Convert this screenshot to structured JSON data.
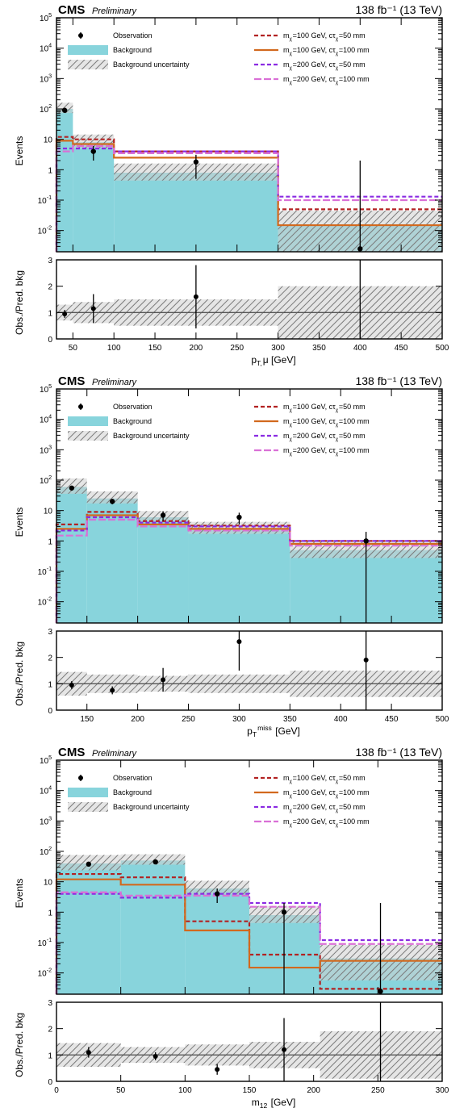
{
  "common": {
    "cms_label": "CMS",
    "preliminary_label": "Preliminary",
    "lumi_label": "138 fb⁻¹ (13 TeV)",
    "y_label_top": "Events",
    "y_label_ratio": "Obs./Pred. bkg",
    "legend": {
      "observation": "Observation",
      "background": "Background",
      "uncertainty": "Background uncertainty",
      "signal_1": "m_χ=100 GeV, cτ_χ=50 mm",
      "signal_2": "m_χ=100 GeV, cτ_χ=100 mm",
      "signal_3": "m_χ=200 GeV, cτ_χ=50 mm",
      "signal_4": "m_χ=200 GeV, cτ_χ=100 mm"
    },
    "colors": {
      "background": "#88d4dc",
      "uncertainty_hatch": "#8c8c8c",
      "signal_1": "#b22222",
      "signal_2": "#d2691e",
      "signal_3": "#8a2be2",
      "signal_4": "#da70d6",
      "data": "#000000"
    }
  },
  "chart_data": [
    {
      "type": "bar",
      "xlabel": "p_T,μ [GeV]",
      "xlim": [
        30,
        500
      ],
      "ylim": [
        0.002,
        100000
      ],
      "yscale": "log",
      "ratio_ylim": [
        0,
        3
      ],
      "x_ticks": [
        50,
        100,
        150,
        200,
        250,
        300,
        350,
        400,
        450,
        500
      ],
      "bins": [
        30,
        50,
        100,
        300,
        500
      ],
      "background": [
        100,
        8,
        0.8,
        0.015
      ],
      "background_unc": [
        0.3,
        0.4,
        0.5,
        1.0
      ],
      "observation": [
        {
          "x": 40,
          "y": 90,
          "err": 15
        },
        {
          "x": 75,
          "y": 4,
          "err": 2
        },
        {
          "x": 200,
          "y": 1.8,
          "err": 1.3
        },
        {
          "x": 400,
          "y": 0.0025,
          "err_up": 2
        }
      ],
      "ratio": [
        {
          "x": 40,
          "y": 0.95,
          "err": 0.15
        },
        {
          "x": 75,
          "y": 1.15,
          "err": 0.55
        },
        {
          "x": 200,
          "y": 1.6,
          "err": 1.2
        },
        {
          "x": 400,
          "y": 0,
          "err_up": 3
        }
      ],
      "signals": [
        {
          "values": [
            12,
            10,
            4,
            0.05
          ]
        },
        {
          "values": [
            9,
            7,
            2.5,
            0.015
          ]
        },
        {
          "values": [
            5,
            5,
            4,
            0.13
          ]
        },
        {
          "values": [
            4,
            6,
            3.5,
            0.1
          ]
        }
      ]
    },
    {
      "type": "bar",
      "xlabel": "p_T^miss [GeV]",
      "xlim": [
        120,
        500
      ],
      "ylim": [
        0.002,
        100000
      ],
      "yscale": "log",
      "ratio_ylim": [
        0,
        3
      ],
      "x_ticks": [
        150,
        200,
        250,
        300,
        350,
        400,
        450,
        500
      ],
      "bins": [
        120,
        150,
        200,
        250,
        350,
        500
      ],
      "background": [
        60,
        25,
        6,
        2.5,
        0.5
      ],
      "background_unc": [
        0.45,
        0.35,
        0.3,
        0.35,
        0.5
      ],
      "observation": [
        {
          "x": 135,
          "y": 55,
          "err": 8
        },
        {
          "x": 175,
          "y": 20,
          "err": 4
        },
        {
          "x": 225,
          "y": 7,
          "err": 2.5
        },
        {
          "x": 300,
          "y": 6,
          "err": 2.5
        },
        {
          "x": 425,
          "y": 1,
          "err": 1
        }
      ],
      "ratio": [
        {
          "x": 135,
          "y": 0.95,
          "err": 0.15
        },
        {
          "x": 175,
          "y": 0.75,
          "err": 0.15
        },
        {
          "x": 225,
          "y": 1.15,
          "err": 0.45
        },
        {
          "x": 300,
          "y": 2.6,
          "err": 1.1
        },
        {
          "x": 425,
          "y": 1.9,
          "err": 1.9
        }
      ],
      "signals": [
        {
          "values": [
            3.5,
            9,
            4.5,
            3.2,
            1.0
          ]
        },
        {
          "values": [
            2.5,
            7,
            3.5,
            2.5,
            0.8
          ]
        },
        {
          "values": [
            2.2,
            6,
            4,
            3,
            1.0
          ]
        },
        {
          "values": [
            1.5,
            5,
            3,
            2.2,
            0.7
          ]
        }
      ]
    },
    {
      "type": "bar",
      "xlabel": "m_12 [GeV]",
      "xlim": [
        0,
        300
      ],
      "ylim": [
        0.002,
        100000
      ],
      "yscale": "log",
      "ratio_ylim": [
        0,
        3
      ],
      "x_ticks": [
        0,
        50,
        100,
        150,
        200,
        250,
        300
      ],
      "bins": [
        0,
        50,
        100,
        150,
        205,
        300
      ],
      "background": [
        40,
        50,
        6,
        0.8,
        0.03
      ],
      "background_unc": [
        0.45,
        0.3,
        0.4,
        0.5,
        0.9
      ],
      "observation": [
        {
          "x": 25,
          "y": 38,
          "err": 6
        },
        {
          "x": 77,
          "y": 45,
          "err": 7
        },
        {
          "x": 125,
          "y": 4,
          "err": 2
        },
        {
          "x": 177,
          "y": 1,
          "err": 1
        },
        {
          "x": 252,
          "y": 0.0025,
          "err_up": 2
        }
      ],
      "ratio": [
        {
          "x": 25,
          "y": 1.1,
          "err": 0.2
        },
        {
          "x": 77,
          "y": 0.95,
          "err": 0.15
        },
        {
          "x": 125,
          "y": 0.45,
          "err": 0.2
        },
        {
          "x": 177,
          "y": 1.2,
          "err": 1.2
        },
        {
          "x": 252,
          "y": 0,
          "err_up": 3
        }
      ],
      "signals": [
        {
          "values": [
            18,
            14,
            0.5,
            0.04,
            0.003
          ]
        },
        {
          "values": [
            12,
            8,
            0.25,
            0.015,
            0.025
          ]
        },
        {
          "values": [
            4,
            3,
            4,
            2,
            0.12
          ]
        },
        {
          "values": [
            4.5,
            3.5,
            3.5,
            1.5,
            0.09
          ]
        }
      ]
    }
  ]
}
